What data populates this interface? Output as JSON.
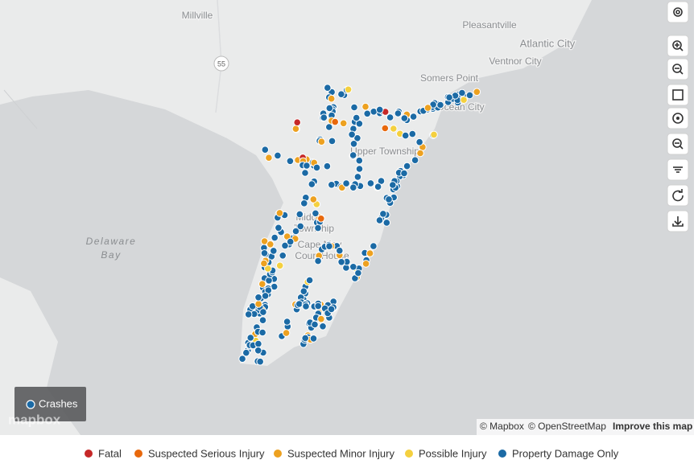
{
  "map": {
    "place_labels": [
      "Millville",
      "Pleasantville",
      "Atlantic City",
      "Ventnor City",
      "Somers Point",
      "Ocean City",
      "Upper Township",
      "Middle",
      "Township",
      "Cape May",
      "Court House"
    ],
    "route_shield": "55",
    "bay_label": [
      "Delaware",
      "Bay"
    ]
  },
  "layer_button": "Crashes",
  "logo": "mapbox",
  "attribution": {
    "mapbox": "© Mapbox",
    "osm": "© OpenStreetMap",
    "improve": "Improve this map"
  },
  "legend": [
    {
      "label": "Fatal",
      "color": "#c62828"
    },
    {
      "label": "Suspected Serious Injury",
      "color": "#e8680c"
    },
    {
      "label": "Suspected Minor Injury",
      "color": "#eda120"
    },
    {
      "label": "Possible Injury",
      "color": "#f4d03f"
    },
    {
      "label": "Property Damage Only",
      "color": "#1b6aa5"
    }
  ]
}
